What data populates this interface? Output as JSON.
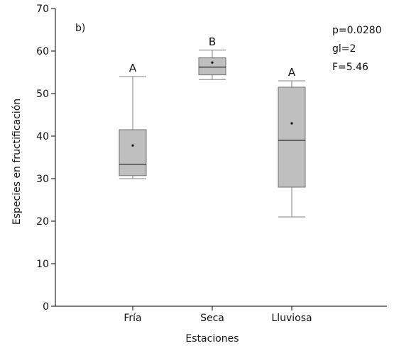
{
  "chart_data": {
    "type": "boxplot",
    "panel_label": "b)",
    "xlabel": "Estaciones",
    "ylabel": "Especies en fructificación",
    "ylim": [
      0,
      70
    ],
    "yticks": [
      0,
      10,
      20,
      30,
      40,
      50,
      60,
      70
    ],
    "grid": false,
    "categories": [
      "Fría",
      "Seca",
      "Lluviosa"
    ],
    "boxes": [
      {
        "category": "Fría",
        "min": 30,
        "q1": 30.7,
        "median": 33.4,
        "q3": 41.5,
        "max": 54,
        "mean": 37.8,
        "group_letter": "A"
      },
      {
        "category": "Seca",
        "min": 53.3,
        "q1": 54.4,
        "median": 56.2,
        "q3": 58.4,
        "max": 60.2,
        "mean": 57.3,
        "group_letter": "B"
      },
      {
        "category": "Lluviosa",
        "min": 21,
        "q1": 28,
        "median": 39,
        "q3": 51.5,
        "max": 53,
        "mean": 43,
        "group_letter": "A"
      }
    ],
    "annotations": [
      "p=0.0280",
      "gl=2",
      "F=5.46"
    ],
    "box_fill": "#bfbfbf",
    "line_color": "#000000",
    "whisker_color": "#808080"
  }
}
